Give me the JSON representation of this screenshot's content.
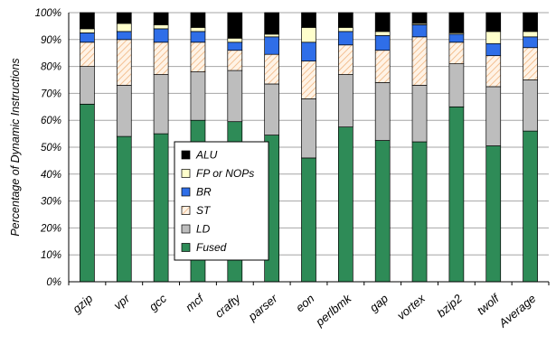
{
  "chart_data": {
    "type": "bar",
    "stacked": true,
    "ylabel": "Percentage of Dynamic Instructions",
    "xlabel": "",
    "title": "",
    "ylim": [
      0,
      100
    ],
    "yticks": [
      "0%",
      "10%",
      "20%",
      "30%",
      "40%",
      "50%",
      "60%",
      "70%",
      "80%",
      "90%",
      "100%"
    ],
    "grid": "horizontal",
    "legend_position": "center-left",
    "legend_order": [
      "ALU",
      "FP or NOPs",
      "BR",
      "ST",
      "LD",
      "Fused"
    ],
    "categories": [
      "gzip",
      "vpr",
      "gcc",
      "mcf",
      "crafty",
      "parser",
      "eon",
      "perlbmk",
      "gap",
      "vortex",
      "bzip2",
      "twolf",
      "Average"
    ],
    "series": [
      {
        "name": "Fused",
        "color": "#2e8b57",
        "pattern": "solid",
        "values": [
          66,
          54,
          55,
          60,
          59.5,
          54.5,
          46,
          57.5,
          52.5,
          52,
          65,
          50.5,
          56
        ]
      },
      {
        "name": "LD",
        "color": "#bdbdbd",
        "pattern": "solid",
        "values": [
          14,
          19,
          22,
          18,
          19,
          19,
          22,
          19.5,
          21.5,
          21,
          16,
          22,
          19
        ]
      },
      {
        "name": "ST",
        "color": "#fde3c8",
        "pattern": "hatch",
        "values": [
          9,
          17,
          12,
          11,
          7.5,
          11,
          14,
          11,
          12,
          18,
          8,
          11.5,
          12
        ]
      },
      {
        "name": "BR",
        "color": "#2f6ee8",
        "pattern": "solid",
        "values": [
          3.5,
          3,
          5,
          4,
          3,
          6.5,
          7,
          5,
          5.5,
          4.5,
          3,
          4.5,
          4
        ]
      },
      {
        "name": "FP or NOPs",
        "color": "#ffffcc",
        "pattern": "solid",
        "values": [
          1.5,
          3,
          1.5,
          1.5,
          1.5,
          1,
          5.5,
          1.5,
          1.5,
          0.5,
          0.5,
          4.5,
          2
        ]
      },
      {
        "name": "ALU",
        "color": "#000000",
        "pattern": "solid",
        "values": [
          6,
          4,
          4.5,
          5.5,
          9.5,
          8,
          5.5,
          5.5,
          7,
          4,
          7.5,
          7,
          7
        ]
      }
    ]
  }
}
